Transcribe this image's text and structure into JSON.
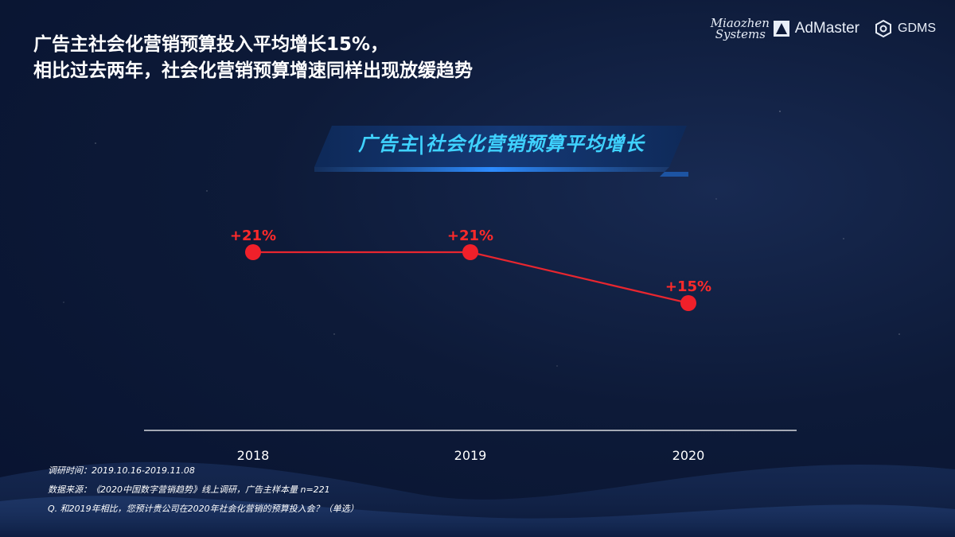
{
  "headline": {
    "line1": "广告主社会化营销预算投入平均增长15%，",
    "line2": "相比过去两年，社会化营销预算增速同样出现放缓趋势"
  },
  "logos": {
    "miaozhen_line1": "Miaozhen",
    "miaozhen_line2": "Systems",
    "admaster": "AdMaster",
    "gdms": "GDMS"
  },
  "chart_data": {
    "type": "line",
    "title": "广告主|社会化营销预算平均增长",
    "categories": [
      "2018",
      "2019",
      "2020"
    ],
    "series": [
      {
        "values": [
          21,
          21,
          15
        ],
        "labels": [
          "+21%",
          "+21%",
          "+15%"
        ]
      }
    ],
    "ylim": [
      0,
      25
    ],
    "grid": false,
    "colors": {
      "line": "#e8262f",
      "marker": "#f0202a",
      "label": "#ff2a2a",
      "axis": "#ffffff"
    }
  },
  "footnotes": {
    "survey_time": "调研时间：2019.10.16-2019.11.08",
    "source": "数据来源：《2020中国数字营销趋势》线上调研，广告主样本量 n=221",
    "question": "Q. 和2019年相比，您预计贵公司在2020年社会化营销的预算投入会？（单选）"
  }
}
